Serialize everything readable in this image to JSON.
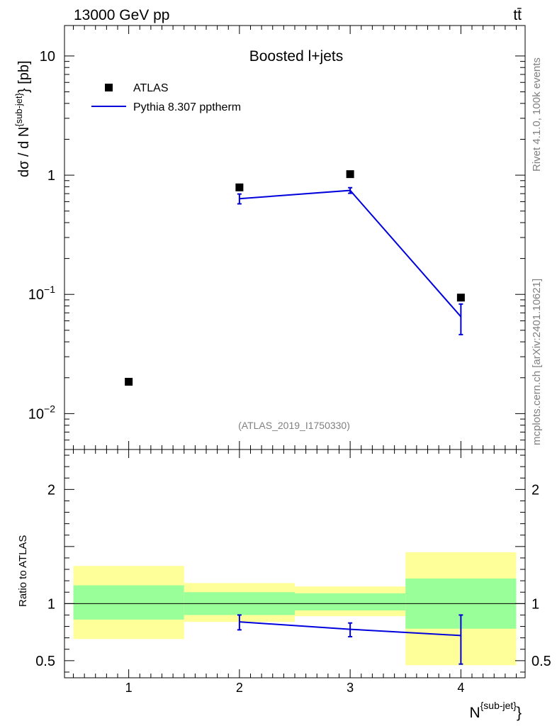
{
  "header": {
    "energy_label": "13000 GeV pp",
    "process_label": "tt̄"
  },
  "side_text": {
    "rivet": "Rivet 4.1.0,  100k events",
    "mcplots": "mcplots.cern.ch [arXiv:2401.10621]"
  },
  "chart_data": {
    "type": "scatter",
    "title": "Boosted l+jets",
    "analysis_id": "(ATLAS_2019_I1750330)",
    "xlabel_main": "N",
    "xlabel_sup": "{sub-jet}",
    "xlabel_close": "}",
    "ylabel_main": "dσ / d N",
    "ylabel_sup": "{sub-jet}",
    "ylabel_tail": "} [pb]",
    "ratio_ylabel": "Ratio to ATLAS",
    "xlim": [
      0.42,
      4.58
    ],
    "ylim": [
      0.005,
      18
    ],
    "yscale": "log",
    "ratio_ylim": [
      0.35,
      2.35
    ],
    "x_ticks": [
      "1",
      "2",
      "3",
      "4"
    ],
    "y_ticks": [
      {
        "value": 10,
        "base": "10",
        "exp": ""
      },
      {
        "value": 1,
        "base": "1",
        "exp": ""
      },
      {
        "value": 0.1,
        "base": "10",
        "exp": "−1"
      },
      {
        "value": 0.01,
        "base": "10",
        "exp": "−2"
      }
    ],
    "ratio_ticks": [
      {
        "value": 2,
        "label": "2"
      },
      {
        "value": 1,
        "label": "1"
      },
      {
        "value": 0.5,
        "label": "0.5"
      }
    ],
    "legend": {
      "position": "top-left",
      "entries": [
        {
          "label": "ATLAS",
          "style": "marker"
        },
        {
          "label": "Pythia 8.307 pptherm",
          "style": "line"
        }
      ]
    },
    "series": [
      {
        "name": "ATLAS",
        "color": "#000000",
        "x": [
          1,
          2,
          3,
          4
        ],
        "y": [
          0.0185,
          0.79,
          1.02,
          0.094
        ]
      },
      {
        "name": "Pythia 8.307 pptherm",
        "color": "#0000dd",
        "x": [
          2,
          3,
          4
        ],
        "y": [
          0.635,
          0.745,
          0.065
        ],
        "yerr_low": [
          0.06,
          0.04,
          0.019
        ],
        "yerr_high": [
          0.06,
          0.04,
          0.018
        ]
      }
    ],
    "ratio": {
      "bins": [
        {
          "lo": 0.5,
          "hi": 1.5,
          "green": [
            0.86,
            1.16
          ],
          "yellow": [
            0.69,
            1.33
          ]
        },
        {
          "lo": 1.5,
          "hi": 2.5,
          "green": [
            0.9,
            1.1
          ],
          "yellow": [
            0.84,
            1.18
          ]
        },
        {
          "lo": 2.5,
          "hi": 3.5,
          "green": [
            0.94,
            1.09
          ],
          "yellow": [
            0.89,
            1.15
          ]
        },
        {
          "lo": 3.5,
          "hi": 4.5,
          "green": [
            0.78,
            1.22
          ],
          "yellow": [
            0.46,
            1.45
          ]
        }
      ],
      "band_colors": {
        "green": "#99ff99",
        "yellow": "#ffff99"
      },
      "mc": {
        "x": [
          2,
          3,
          4
        ],
        "y": [
          0.84,
          0.775,
          0.72
        ],
        "ylow": [
          0.77,
          0.71,
          0.47
        ],
        "yhigh": [
          0.9,
          0.83,
          0.9
        ]
      }
    }
  }
}
